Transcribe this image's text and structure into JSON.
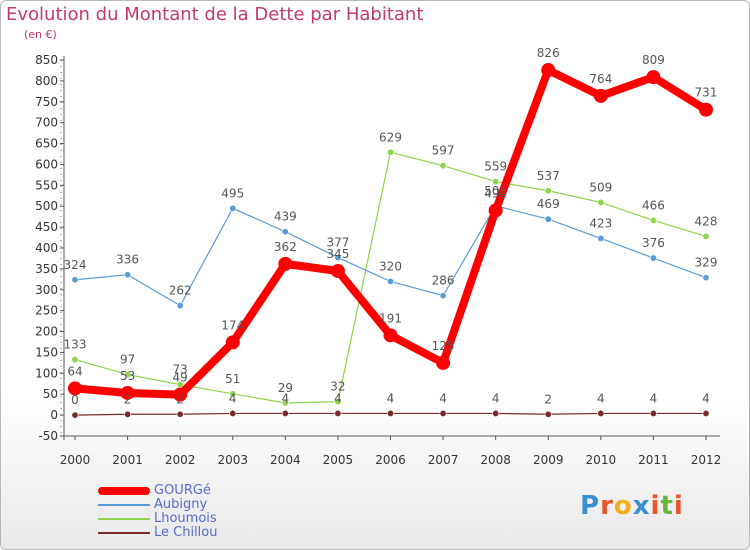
{
  "page": {
    "title": "Evolution du Montant de la Dette par Habitant",
    "unit": "(en €)",
    "logo_letters": [
      "P",
      "r",
      "o",
      "x",
      "i",
      "t",
      "i"
    ],
    "logo_colors": [
      "#3b8fd1",
      "#e8542c",
      "#f2b019",
      "#3b8fd1",
      "#e8542c",
      "#6bb33a",
      "#e8542c"
    ]
  },
  "chart_data": {
    "type": "line",
    "title": "Evolution du Montant de la Dette par Habitant",
    "ylabel": "(en €)",
    "xlabel": "",
    "x": [
      "2000",
      "2001",
      "2002",
      "2003",
      "2004",
      "2005",
      "2006",
      "2007",
      "2008",
      "2009",
      "2010",
      "2011",
      "2012"
    ],
    "ylim": [
      -50,
      850
    ],
    "yticks": [
      -50,
      0,
      50,
      100,
      150,
      200,
      250,
      300,
      350,
      400,
      450,
      500,
      550,
      600,
      650,
      700,
      750,
      800,
      850
    ],
    "grid": false,
    "legend_position": "bottom-left",
    "series": [
      {
        "name": "GOURGé",
        "color": "#ff0000",
        "values": [
          64,
          53,
          49,
          174,
          362,
          345,
          191,
          125,
          490,
          826,
          764,
          809,
          731
        ],
        "labels": [
          "64",
          "53",
          "49",
          "174",
          "362",
          "345",
          "191",
          "125",
          "490",
          "826",
          "764",
          "809",
          "731"
        ]
      },
      {
        "name": "Aubigny",
        "color": "#5b9bd5",
        "values": [
          324,
          336,
          262,
          495,
          439,
          377,
          320,
          286,
          501,
          469,
          423,
          376,
          329
        ],
        "labels": [
          "324",
          "336",
          "262",
          "495",
          "439",
          "377",
          "320",
          "286",
          "501",
          "469",
          "423",
          "376",
          "329"
        ]
      },
      {
        "name": "Lhoumois",
        "color": "#8fd44a",
        "values": [
          133,
          97,
          73,
          51,
          29,
          32,
          629,
          597,
          559,
          537,
          509,
          466,
          428
        ],
        "labels": [
          "133",
          "97",
          "73",
          "51",
          "29",
          "32",
          "629",
          "597",
          "559",
          "537",
          "509",
          "466",
          "428"
        ]
      },
      {
        "name": "Le Chillou",
        "color": "#7a2a2a",
        "values": [
          0,
          2,
          2,
          4,
          4,
          4,
          4,
          4,
          4,
          2,
          4,
          4,
          4
        ],
        "labels": [
          "0",
          "2",
          "2",
          "4",
          "4",
          "4",
          "4",
          "4",
          "4",
          "2",
          "4",
          "4",
          "4"
        ]
      }
    ]
  }
}
